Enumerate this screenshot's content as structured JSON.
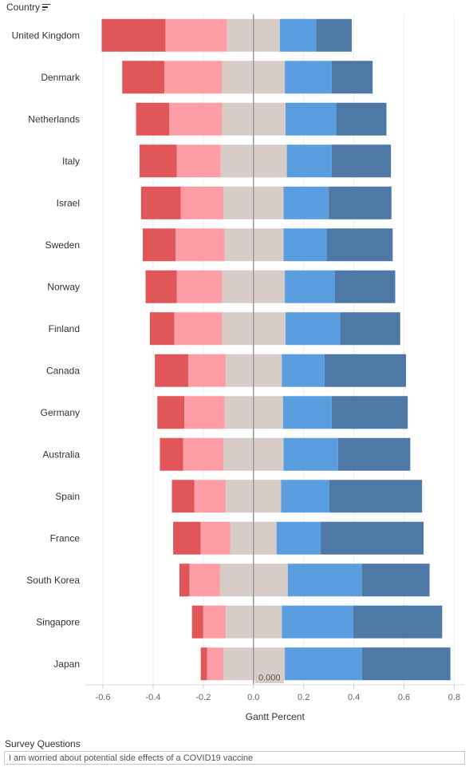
{
  "header": {
    "country_label": "Country",
    "sort_icon": "sort-descending-icon"
  },
  "filter": {
    "title": "Survey Questions",
    "selected_value": "I am worried about potential side effects of a COVID19 vaccine"
  },
  "colors": {
    "strongly_disagree": "#e15759",
    "disagree": "#ff9da7",
    "neutral": "#d7ccc8",
    "agree": "#5b9ee0",
    "strongly_agree": "#4e79a7",
    "zero_line": "#999999",
    "grid": "#ececec"
  },
  "chart_data": {
    "type": "bar",
    "orientation": "horizontal",
    "subtype": "diverging stacked (gantt)",
    "xlabel": "Gantt Percent",
    "ylabel": "Country",
    "xlim": [
      -0.67,
      0.84
    ],
    "xticks": [
      -0.6,
      -0.4,
      -0.2,
      0.0,
      0.2,
      0.4,
      0.6,
      0.8
    ],
    "xtick_labels": [
      "-0.6",
      "-0.4",
      "-0.2",
      "0.0",
      "0.2",
      "0.4",
      "0.6",
      "0.8"
    ],
    "zero_label": "0.000",
    "grid": true,
    "categories": [
      "United Kingdom",
      "Denmark",
      "Netherlands",
      "Italy",
      "Israel",
      "Sweden",
      "Norway",
      "Finland",
      "Canada",
      "Germany",
      "Australia",
      "Spain",
      "France",
      "South Korea",
      "Singapore",
      "Japan"
    ],
    "series": [
      {
        "color_key": "strongly_disagree",
        "start": [
          -0.605,
          -0.523,
          -0.468,
          -0.454,
          -0.448,
          -0.441,
          -0.43,
          -0.413,
          -0.393,
          -0.383,
          -0.373,
          -0.325,
          -0.32,
          -0.295,
          -0.245,
          -0.21
        ],
        "end": [
          -0.35,
          -0.355,
          -0.335,
          -0.305,
          -0.29,
          -0.31,
          -0.305,
          -0.315,
          -0.26,
          -0.275,
          -0.28,
          -0.235,
          -0.21,
          -0.255,
          -0.2,
          -0.185
        ]
      },
      {
        "color_key": "disagree",
        "start": [
          -0.35,
          -0.355,
          -0.335,
          -0.305,
          -0.29,
          -0.31,
          -0.305,
          -0.315,
          -0.26,
          -0.275,
          -0.28,
          -0.235,
          -0.21,
          -0.255,
          -0.2,
          -0.185
        ],
        "end": [
          -0.105,
          -0.125,
          -0.125,
          -0.13,
          -0.12,
          -0.115,
          -0.125,
          -0.125,
          -0.11,
          -0.115,
          -0.12,
          -0.11,
          -0.092,
          -0.133,
          -0.11,
          -0.12
        ]
      },
      {
        "color_key": "neutral",
        "start": [
          -0.105,
          -0.125,
          -0.125,
          -0.13,
          -0.12,
          -0.115,
          -0.125,
          -0.125,
          -0.11,
          -0.115,
          -0.12,
          -0.11,
          -0.092,
          -0.133,
          -0.11,
          -0.12
        ],
        "end": [
          0.105,
          0.125,
          0.128,
          0.133,
          0.12,
          0.12,
          0.125,
          0.128,
          0.113,
          0.118,
          0.12,
          0.11,
          0.092,
          0.137,
          0.113,
          0.125
        ]
      },
      {
        "color_key": "agree",
        "start": [
          0.105,
          0.125,
          0.128,
          0.133,
          0.12,
          0.12,
          0.125,
          0.128,
          0.113,
          0.118,
          0.12,
          0.11,
          0.092,
          0.137,
          0.113,
          0.125
        ],
        "end": [
          0.25,
          0.312,
          0.33,
          0.312,
          0.3,
          0.292,
          0.325,
          0.345,
          0.283,
          0.312,
          0.337,
          0.302,
          0.268,
          0.432,
          0.398,
          0.432
        ]
      },
      {
        "color_key": "strongly_agree",
        "start": [
          0.25,
          0.312,
          0.33,
          0.312,
          0.3,
          0.292,
          0.325,
          0.345,
          0.283,
          0.312,
          0.337,
          0.302,
          0.268,
          0.432,
          0.398,
          0.432
        ],
        "end": [
          0.392,
          0.475,
          0.53,
          0.548,
          0.55,
          0.555,
          0.565,
          0.585,
          0.608,
          0.615,
          0.625,
          0.672,
          0.678,
          0.702,
          0.752,
          0.785
        ]
      }
    ]
  }
}
